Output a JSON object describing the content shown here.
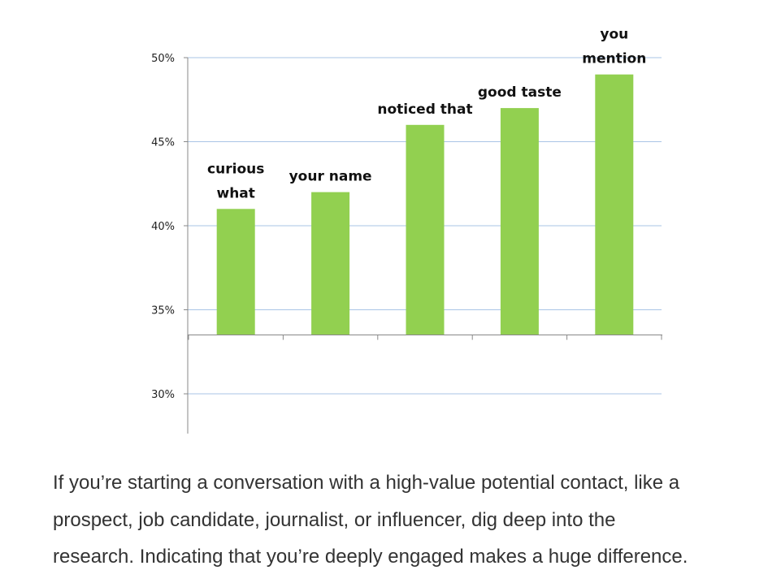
{
  "chart_data": {
    "type": "bar",
    "categories": [
      "curious what",
      "your name",
      "noticed that",
      "good taste",
      "you mention"
    ],
    "values": [
      41,
      42,
      46,
      47,
      49
    ],
    "bar_labels": [
      [
        "curious",
        "what"
      ],
      [
        "your name"
      ],
      [
        "noticed that"
      ],
      [
        "good taste"
      ],
      [
        "you",
        "mention"
      ]
    ],
    "y_ticks": [
      {
        "value": 50,
        "label": "50%"
      },
      {
        "value": 45,
        "label": "45%"
      },
      {
        "value": 40,
        "label": "40%"
      },
      {
        "value": 35,
        "label": "35%"
      },
      {
        "value": 30,
        "label": "30%"
      }
    ],
    "ylim": [
      28,
      50
    ],
    "x_axis_at": 33.5,
    "gridlines": true,
    "title": "",
    "xlabel": "",
    "ylabel": "",
    "bar_color": "#92d050",
    "grid_color": "#a9c4e6"
  },
  "caption": {
    "lines": [
      "If you’re starting a conversation with a high-value potential contact, like a",
      "prospect, job candidate, journalist, or influencer, dig deep into the",
      "research. Indicating that you’re deeply engaged makes a huge difference."
    ]
  }
}
